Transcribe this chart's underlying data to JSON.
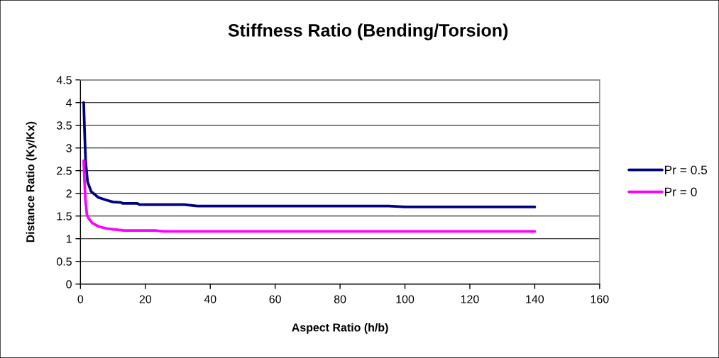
{
  "chart_data": {
    "type": "line",
    "title": "Stiffness Ratio (Bending/Torsion)",
    "xlabel": "Aspect Ratio (h/b)",
    "ylabel": "Distance Ratio (Ky/Kx)",
    "xlim": [
      0,
      160
    ],
    "xticks": [
      0,
      20,
      40,
      60,
      80,
      100,
      120,
      140,
      160
    ],
    "ylim": [
      0,
      4.5
    ],
    "yticks": [
      0,
      0.5,
      1,
      1.5,
      2,
      2.5,
      3,
      3.5,
      4,
      4.5
    ],
    "grid": "y",
    "legend": "right",
    "marker": "none",
    "line_style": "solid",
    "series": [
      {
        "name": "Pr = 0.5",
        "color": "#000080",
        "x": [
          1,
          1.3,
          1.6,
          2.2,
          3.3,
          5.5,
          8,
          10,
          12.5,
          13,
          17.5,
          18.2,
          32,
          36,
          95,
          100,
          140
        ],
        "values": [
          4.0,
          3.3,
          2.7,
          2.25,
          2.04,
          1.91,
          1.85,
          1.81,
          1.8,
          1.78,
          1.78,
          1.75,
          1.75,
          1.72,
          1.72,
          1.7,
          1.7
        ]
      },
      {
        "name": "Pr = 0",
        "color": "#ff00ff",
        "x": [
          1,
          1.3,
          1.5,
          2,
          2.5,
          3.6,
          5.5,
          7.7,
          9.8,
          13.5,
          23,
          25.6,
          140
        ],
        "values": [
          2.72,
          2.2,
          1.88,
          1.52,
          1.45,
          1.35,
          1.27,
          1.23,
          1.21,
          1.18,
          1.18,
          1.16,
          1.16
        ]
      }
    ]
  }
}
